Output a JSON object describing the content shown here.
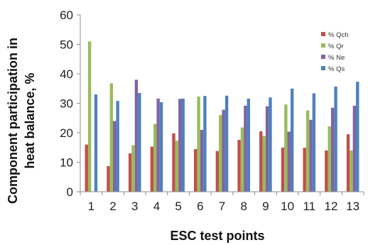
{
  "chart_data": {
    "type": "bar",
    "xlabel": "ESC test points",
    "ylabel": "Component participation in heat balance, %",
    "ylabel_lines": [
      "Component participation in",
      "heat balance, %"
    ],
    "ylim": [
      0,
      60
    ],
    "yticks": [
      0,
      10,
      20,
      30,
      40,
      50,
      60
    ],
    "grid": false,
    "legend_position": "top-right",
    "categories": [
      "1",
      "2",
      "3",
      "4",
      "5",
      "6",
      "7",
      "8",
      "9",
      "10",
      "11",
      "12",
      "13"
    ],
    "series": [
      {
        "name": "% Qch",
        "color": "#c0504d",
        "values": [
          16.0,
          8.7,
          13.0,
          15.3,
          19.8,
          14.5,
          13.8,
          17.6,
          20.5,
          15.0,
          14.9,
          14.0,
          19.5
        ]
      },
      {
        "name": "% Qr",
        "color": "#9bbb59",
        "values": [
          51.0,
          36.8,
          15.8,
          23.0,
          17.3,
          32.3,
          26.0,
          21.8,
          18.9,
          29.6,
          27.6,
          22.2,
          14.0
        ]
      },
      {
        "name": "% Ne",
        "color": "#8064a2",
        "values": [
          0,
          24.0,
          38.0,
          31.6,
          31.5,
          21.0,
          27.8,
          29.2,
          29.0,
          20.4,
          24.4,
          28.5,
          29.2
        ]
      },
      {
        "name": "% Qs",
        "color": "#4f81bd",
        "values": [
          33.0,
          30.8,
          33.5,
          30.4,
          31.6,
          32.5,
          32.6,
          31.6,
          32.0,
          35.0,
          33.4,
          35.7,
          37.3
        ]
      }
    ]
  }
}
